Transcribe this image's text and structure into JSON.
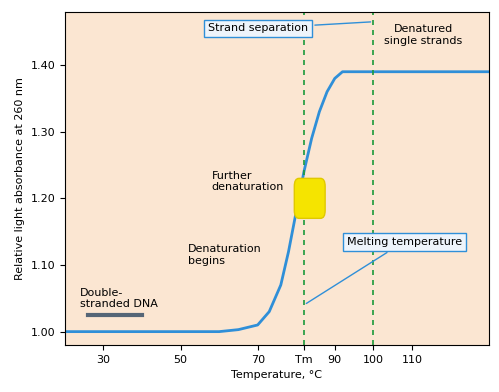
{
  "chart_data": {
    "type": "line",
    "x_label": "Temperature, °C",
    "y_label": "Relative light absorbance at 260 nm",
    "x": [
      20,
      30,
      40,
      50,
      60,
      65,
      70,
      73,
      76,
      78,
      80,
      82,
      84,
      86,
      88,
      90,
      92,
      95,
      100,
      110,
      120,
      130
    ],
    "values": [
      1.0,
      1.0,
      1.0,
      1.0,
      1.0,
      1.003,
      1.01,
      1.03,
      1.07,
      1.12,
      1.18,
      1.24,
      1.29,
      1.33,
      1.36,
      1.38,
      1.39,
      1.39,
      1.39,
      1.39,
      1.39,
      1.39
    ],
    "color": "#2f8fd8",
    "xlim": [
      20,
      130
    ],
    "ylim": [
      0.98,
      1.48
    ],
    "xticks": [
      30,
      50,
      70,
      {
        "value": 82,
        "label": "Tm"
      },
      90,
      100,
      110
    ],
    "yticks": [
      {
        "value": 1.0,
        "label": "1.00"
      },
      {
        "value": 1.1,
        "label": "1.10"
      },
      {
        "value": 1.2,
        "label": "1.20"
      },
      {
        "value": 1.3,
        "label": "1.30"
      },
      {
        "value": 1.4,
        "label": "1.40"
      }
    ],
    "reference_lines": [
      82,
      100
    ],
    "annotations": {
      "strand_separation": "Strand separation",
      "denatured": "Denatured\nsingle strands",
      "further": "Further\ndenaturation",
      "begins": "Denaturation\nbegins",
      "double": "Double-\nstranded DNA",
      "melting": "Melting temperature"
    }
  }
}
